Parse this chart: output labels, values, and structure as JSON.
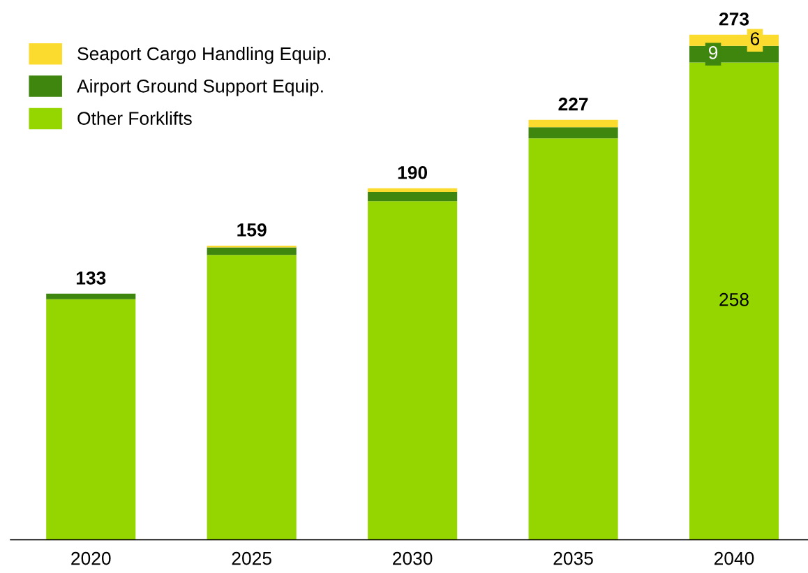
{
  "chart_data": {
    "type": "bar",
    "stacked": true,
    "categories": [
      "2020",
      "2025",
      "2030",
      "2035",
      "2040"
    ],
    "series": [
      {
        "name": "Other Forklifts",
        "color": "#95d600",
        "values": [
          130,
          154,
          183,
          217,
          258
        ],
        "value_labels": [
          null,
          null,
          null,
          null,
          "258"
        ]
      },
      {
        "name": "Airport Ground Support Equip.",
        "color": "#3f860f",
        "values": [
          3,
          4,
          5,
          6,
          9
        ],
        "value_labels": [
          null,
          null,
          null,
          null,
          "9"
        ]
      },
      {
        "name": "Seaport Cargo Handling Equip.",
        "color": "#fbdb2e",
        "values": [
          0,
          1,
          2,
          4,
          6
        ],
        "value_labels": [
          null,
          null,
          null,
          null,
          "6"
        ]
      }
    ],
    "totals": [
      "133",
      "159",
      "190",
      "227",
      "273"
    ],
    "tick_labels": "x",
    "grid": false,
    "legend": "top left"
  }
}
